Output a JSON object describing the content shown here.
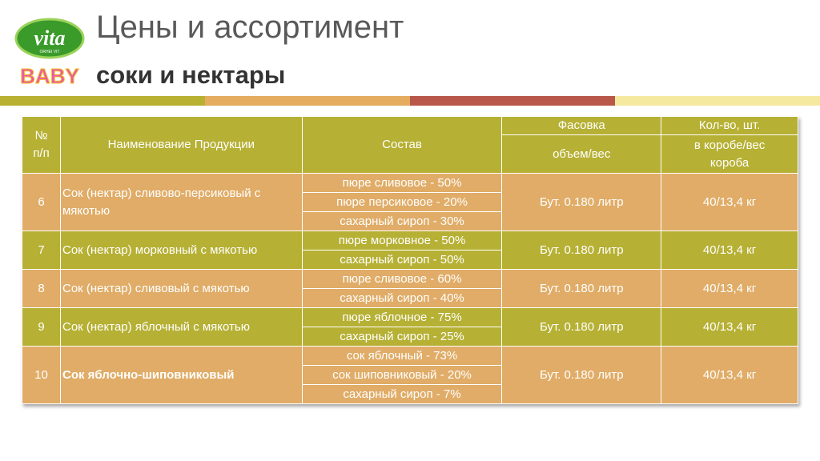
{
  "header": {
    "title": "Цены и ассортимент",
    "subtitle": "соки и нектары"
  },
  "logo": {
    "brand": "vita",
    "sub": "ORHEI VIT",
    "line": "BABY"
  },
  "table": {
    "columns": {
      "number": "№ п/п",
      "name": "Наименование Продукции",
      "composition": "Состав",
      "packaging": "Фасовка",
      "packaging_sub": "объем/вес",
      "quantity": "Кол-во, шт.",
      "quantity_sub": "в коробе/вес короба"
    },
    "rows": [
      {
        "number": "6",
        "name": "Сок (нектар) сливово-персиковый с мякотью",
        "composition": [
          "пюре сливовое - 50%",
          "пюре персиковое - 20%",
          "сахарный сироп - 30%"
        ],
        "packaging": "Бут. 0.180 литр",
        "quantity": "40/13,4 кг"
      },
      {
        "number": "7",
        "name": "Сок (нектар) морковный с мякотью",
        "composition": [
          "пюре морковное - 50%",
          "сахарный сироп - 50%"
        ],
        "packaging": "Бут. 0.180 литр",
        "quantity": "40/13,4 кг"
      },
      {
        "number": "8",
        "name": "Сок (нектар) сливовый с мякотью",
        "composition": [
          "пюре сливовое - 60%",
          "сахарный сироп - 40%"
        ],
        "packaging": "Бут. 0.180 литр",
        "quantity": "40/13,4 кг"
      },
      {
        "number": "9",
        "name": "Сок (нектар) яблочный с мякотью",
        "composition": [
          "пюре яблочное - 75%",
          "сахарный сироп - 25%"
        ],
        "packaging": "Бут. 0.180 литр",
        "quantity": "40/13,4 кг"
      },
      {
        "number": "10",
        "name": "Сок яблочно-шиповниковый",
        "composition": [
          "сок яблочный - 73%",
          "сок шиповниковый - 20%",
          "сахарный сироп - 7%"
        ],
        "packaging": "Бут. 0.180 литр",
        "quantity": "40/13,4 кг"
      }
    ]
  }
}
